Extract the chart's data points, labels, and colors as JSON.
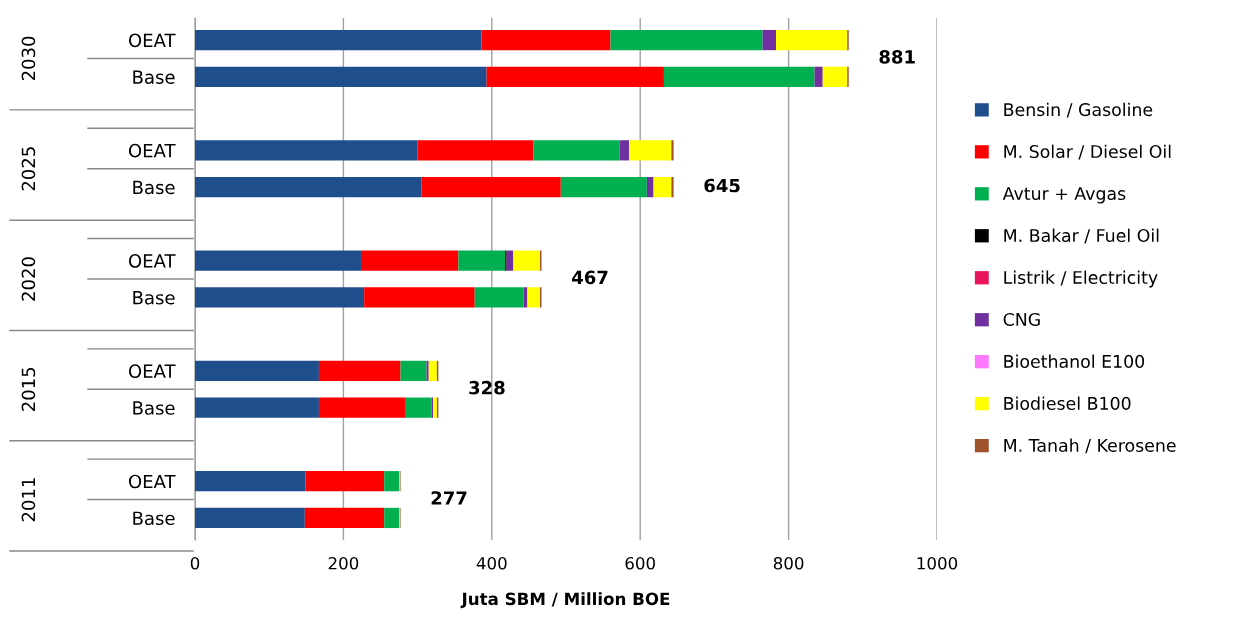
{
  "chart_data": {
    "type": "bar",
    "orientation": "horizontal",
    "stacked": true,
    "xlabel": "Juta SBM / Million BOE",
    "categories": [
      "OEAT",
      "Base",
      null,
      "OEAT",
      "Base",
      null,
      "OEAT",
      "Base",
      null,
      "OEAT",
      "Base",
      null,
      "OEAT",
      "Base"
    ],
    "series": [
      {
        "name": "Bensin / Gasoline",
        "color": "#1f4e8c",
        "values": [
          386,
          393,
          null,
          300,
          305,
          null,
          225,
          228,
          null,
          167,
          167,
          null,
          149,
          148
        ]
      },
      {
        "name": "M. Solar / Diesel Oil",
        "color": "#ff0000",
        "values": [
          174,
          239,
          null,
          156,
          188,
          null,
          130,
          149,
          null,
          110,
          116,
          null,
          106,
          107
        ]
      },
      {
        "name": "Avtur + Avgas",
        "color": "#00b050",
        "values": [
          205,
          203,
          null,
          116,
          116,
          null,
          63,
          66,
          null,
          35,
          36,
          null,
          20,
          20
        ]
      },
      {
        "name": "M. Bakar / Fuel Oil",
        "color": "#000000",
        "values": [
          0,
          0,
          null,
          0,
          0,
          null,
          2,
          0,
          null,
          0,
          0,
          null,
          0,
          0
        ]
      },
      {
        "name": "Listrik / Electricity",
        "color": "#e8155b",
        "values": [
          0,
          0,
          null,
          0,
          0,
          null,
          0,
          0,
          null,
          0,
          0,
          null,
          0,
          0
        ]
      },
      {
        "name": "CNG",
        "color": "#7030a0",
        "values": [
          18,
          11,
          null,
          13,
          9,
          null,
          9,
          5,
          null,
          3,
          2,
          null,
          0,
          0
        ]
      },
      {
        "name": "Bioethanol E100",
        "color": "#ff77ff",
        "values": [
          0,
          0,
          null,
          0,
          0,
          null,
          0,
          0,
          null,
          0,
          0,
          null,
          0,
          0
        ]
      },
      {
        "name": "Biodiesel B100",
        "color": "#ffff00",
        "values": [
          96,
          33,
          null,
          57,
          24,
          null,
          36,
          17,
          null,
          11,
          5,
          null,
          1,
          1
        ]
      },
      {
        "name": "M. Tanah / Kerosene",
        "color": "#a0522d",
        "values": [
          2,
          2,
          null,
          3,
          3,
          null,
          2,
          2,
          null,
          2,
          2,
          null,
          1,
          1
        ]
      }
    ],
    "totals": [
      "881",
      null,
      null,
      null,
      "645",
      null,
      "467",
      null,
      null,
      "328",
      null,
      null,
      "277",
      null
    ],
    "annotations": [
      "2030",
      "2025",
      "2020",
      "2015",
      "2011"
    ],
    "xlim": [
      0,
      1000
    ],
    "xticks": [
      0,
      200,
      400,
      600,
      800,
      1000
    ],
    "grid": "x",
    "legend": "right"
  }
}
